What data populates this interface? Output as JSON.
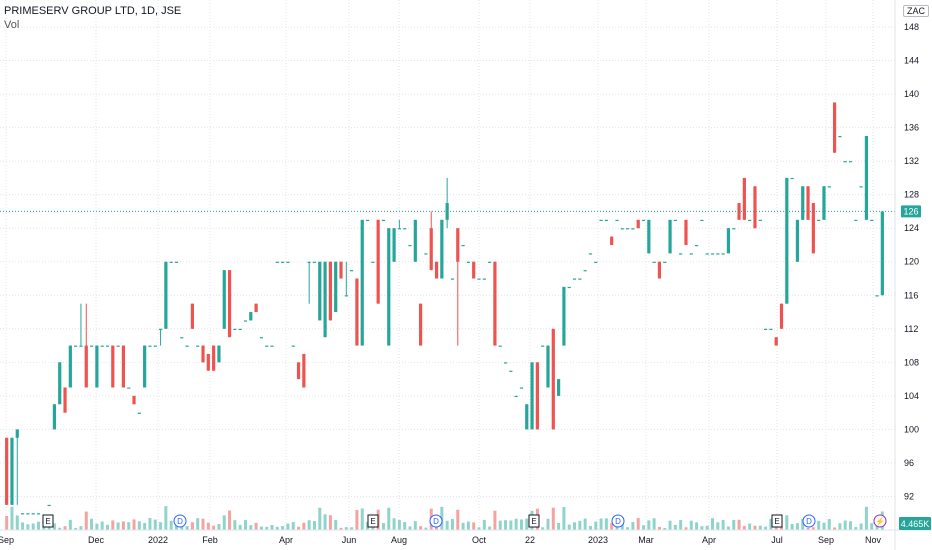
{
  "header": {
    "title": "PRIMESERV GROUP LTD, 1D, JSE",
    "vol_label": "Vol",
    "currency": "ZAC"
  },
  "price_badge": "126",
  "volume_badge": "4.465K",
  "colors": {
    "up": "#26a69a",
    "down": "#ef5350",
    "vol_up": "#8fd4cb",
    "vol_down": "#f4a3a1",
    "grid": "#e0e3eb",
    "axis_text": "#131722",
    "event_dividend": "#2962ff",
    "event_earnings": "#131722",
    "event_split": "#9c27b0"
  },
  "events": [
    {
      "label": "E",
      "type": "earnings",
      "x_pos": "Nov"
    },
    {
      "label": "D",
      "type": "dividend",
      "x_pos": "Jan 2022"
    },
    {
      "label": "E",
      "type": "earnings",
      "x_pos": "Jun 2022"
    },
    {
      "label": "D",
      "type": "dividend",
      "x_pos": "Aug 2022"
    },
    {
      "label": "E",
      "type": "earnings",
      "x_pos": "Nov 2022"
    },
    {
      "label": "D",
      "type": "dividend",
      "x_pos": "Feb 2023"
    },
    {
      "label": "E",
      "type": "earnings",
      "x_pos": "Jul 2023"
    },
    {
      "label": "D",
      "type": "dividend",
      "x_pos": "Aug 2023"
    },
    {
      "label": "⚡",
      "type": "split",
      "x_pos": "Nov 2023"
    }
  ],
  "chart_data": {
    "type": "candlestick",
    "title": "PRIMESERV GROUP LTD, 1D, JSE",
    "y_axis": {
      "range": [
        88,
        150
      ],
      "ticks": [
        92,
        96,
        100,
        104,
        108,
        112,
        116,
        120,
        124,
        128,
        132,
        136,
        140,
        144,
        148
      ],
      "position": "right"
    },
    "x_axis": {
      "ticks": [
        "Sep",
        "Dec",
        "2022",
        "Feb",
        "Apr",
        "Jun",
        "Aug",
        "Oct",
        "22",
        "2023",
        "Mar",
        "Apr",
        "Jul",
        "Sep",
        "Nov"
      ]
    },
    "last_price": 126,
    "grid": true,
    "candles": [
      {
        "o": 99,
        "h": 99,
        "l": 91,
        "c": 91
      },
      {
        "o": 91,
        "h": 99,
        "l": 91,
        "c": 99
      },
      {
        "o": 99,
        "h": 100,
        "l": 91,
        "c": 100
      },
      {
        "o": 90,
        "h": 90,
        "l": 90,
        "c": 90
      },
      {
        "o": 90,
        "h": 90,
        "l": 90,
        "c": 90
      },
      {
        "o": 90,
        "h": 90,
        "l": 90,
        "c": 90
      },
      {
        "o": 90,
        "h": 90,
        "l": 90,
        "c": 90
      },
      {
        "o": 89,
        "h": 89,
        "l": 89,
        "c": 89
      },
      {
        "o": 91,
        "h": 91,
        "l": 91,
        "c": 91
      },
      {
        "o": 100,
        "h": 103,
        "l": 100,
        "c": 103
      },
      {
        "o": 103,
        "h": 108,
        "l": 103,
        "c": 108
      },
      {
        "o": 105,
        "h": 105,
        "l": 102,
        "c": 102
      },
      {
        "o": 105,
        "h": 110,
        "l": 105,
        "c": 110
      },
      {
        "o": 110,
        "h": 110,
        "l": 110,
        "c": 110
      },
      {
        "o": 110,
        "h": 115,
        "l": 110,
        "c": 110
      },
      {
        "o": 110,
        "h": 115,
        "l": 105,
        "c": 105
      },
      {
        "o": 110,
        "h": 110,
        "l": 110,
        "c": 110
      },
      {
        "o": 105,
        "h": 110,
        "l": 105,
        "c": 110
      },
      {
        "o": 110,
        "h": 110,
        "l": 110,
        "c": 110
      },
      {
        "o": 110,
        "h": 110,
        "l": 110,
        "c": 110
      },
      {
        "o": 110,
        "h": 110,
        "l": 105,
        "c": 105
      },
      {
        "o": 110,
        "h": 110,
        "l": 110,
        "c": 110
      },
      {
        "o": 110,
        "h": 110,
        "l": 105,
        "c": 105
      },
      {
        "o": 105,
        "h": 105,
        "l": 105,
        "c": 105
      },
      {
        "o": 104,
        "h": 104,
        "l": 103,
        "c": 103
      },
      {
        "o": 102,
        "h": 102,
        "l": 102,
        "c": 102
      },
      {
        "o": 105,
        "h": 110,
        "l": 105,
        "c": 110
      },
      {
        "o": 110,
        "h": 110,
        "l": 110,
        "c": 110
      },
      {
        "o": 110,
        "h": 110,
        "l": 110,
        "c": 110
      },
      {
        "o": 112,
        "h": 112,
        "l": 110,
        "c": 112
      },
      {
        "o": 112,
        "h": 120,
        "l": 112,
        "c": 120
      },
      {
        "o": 120,
        "h": 120,
        "l": 120,
        "c": 120
      },
      {
        "o": 120,
        "h": 120,
        "l": 120,
        "c": 120
      },
      {
        "o": 111,
        "h": 111,
        "l": 111,
        "c": 111
      },
      {
        "o": 110,
        "h": 110,
        "l": 110,
        "c": 110
      },
      {
        "o": 115,
        "h": 115,
        "l": 112,
        "c": 112
      },
      {
        "o": 110,
        "h": 110,
        "l": 110,
        "c": 110
      },
      {
        "o": 110,
        "h": 110,
        "l": 108,
        "c": 108
      },
      {
        "o": 109,
        "h": 109,
        "l": 107,
        "c": 107
      },
      {
        "o": 110,
        "h": 110,
        "l": 107,
        "c": 107
      },
      {
        "o": 108,
        "h": 110,
        "l": 108,
        "c": 110
      },
      {
        "o": 112,
        "h": 119,
        "l": 112,
        "c": 119
      },
      {
        "o": 119,
        "h": 119,
        "l": 111,
        "c": 111
      },
      {
        "o": 112,
        "h": 112,
        "l": 112,
        "c": 112
      },
      {
        "o": 112,
        "h": 112,
        "l": 112,
        "c": 112
      },
      {
        "o": 113,
        "h": 113,
        "l": 113,
        "c": 113
      },
      {
        "o": 113,
        "h": 114,
        "l": 113,
        "c": 114
      },
      {
        "o": 115,
        "h": 115,
        "l": 114,
        "c": 114
      },
      {
        "o": 111,
        "h": 111,
        "l": 111,
        "c": 111
      },
      {
        "o": 110,
        "h": 110,
        "l": 110,
        "c": 110
      },
      {
        "o": 110,
        "h": 110,
        "l": 110,
        "c": 110
      },
      {
        "o": 120,
        "h": 120,
        "l": 120,
        "c": 120
      },
      {
        "o": 120,
        "h": 120,
        "l": 120,
        "c": 120
      },
      {
        "o": 120,
        "h": 120,
        "l": 120,
        "c": 120
      },
      {
        "o": 110,
        "h": 110,
        "l": 110,
        "c": 110
      },
      {
        "o": 108,
        "h": 108,
        "l": 106,
        "c": 106
      },
      {
        "o": 109,
        "h": 109,
        "l": 105,
        "c": 105
      },
      {
        "o": 120,
        "h": 120,
        "l": 115,
        "c": 120
      },
      {
        "o": 120,
        "h": 120,
        "l": 120,
        "c": 120
      },
      {
        "o": 113,
        "h": 120,
        "l": 113,
        "c": 120
      },
      {
        "o": 111,
        "h": 120,
        "l": 111,
        "c": 120
      },
      {
        "o": 120,
        "h": 120,
        "l": 113,
        "c": 113
      },
      {
        "o": 114,
        "h": 120,
        "l": 114,
        "c": 120
      },
      {
        "o": 120,
        "h": 120,
        "l": 118,
        "c": 118
      },
      {
        "o": 116,
        "h": 120,
        "l": 116,
        "c": 116
      },
      {
        "o": 119,
        "h": 119,
        "l": 119,
        "c": 119
      },
      {
        "o": 118,
        "h": 118,
        "l": 110,
        "c": 110
      },
      {
        "o": 110,
        "h": 125,
        "l": 110,
        "c": 125
      },
      {
        "o": 125,
        "h": 125,
        "l": 125,
        "c": 125
      },
      {
        "o": 120,
        "h": 120,
        "l": 120,
        "c": 120
      },
      {
        "o": 125,
        "h": 125,
        "l": 115,
        "c": 115
      },
      {
        "o": 125,
        "h": 125,
        "l": 125,
        "c": 125
      },
      {
        "o": 110,
        "h": 124,
        "l": 110,
        "c": 124
      },
      {
        "o": 120,
        "h": 124,
        "l": 120,
        "c": 124
      },
      {
        "o": 124,
        "h": 125,
        "l": 124,
        "c": 124
      },
      {
        "o": 124,
        "h": 124,
        "l": 124,
        "c": 124
      },
      {
        "o": 122,
        "h": 122,
        "l": 122,
        "c": 122
      },
      {
        "o": 120,
        "h": 125,
        "l": 120,
        "c": 125
      },
      {
        "o": 115,
        "h": 115,
        "l": 110,
        "c": 110
      },
      {
        "o": 121,
        "h": 121,
        "l": 121,
        "c": 121
      },
      {
        "o": 124,
        "h": 126,
        "l": 119,
        "c": 119
      },
      {
        "o": 120,
        "h": 120,
        "l": 118,
        "c": 118
      },
      {
        "o": 118,
        "h": 125,
        "l": 118,
        "c": 125
      },
      {
        "o": 125,
        "h": 130,
        "l": 124,
        "c": 127
      },
      {
        "o": 118,
        "h": 118,
        "l": 118,
        "c": 118
      },
      {
        "o": 124,
        "h": 124,
        "l": 110,
        "c": 120
      },
      {
        "o": 122,
        "h": 122,
        "l": 122,
        "c": 122
      },
      {
        "o": 120,
        "h": 120,
        "l": 120,
        "c": 120
      },
      {
        "o": 120,
        "h": 120,
        "l": 118,
        "c": 118
      },
      {
        "o": 118,
        "h": 118,
        "l": 118,
        "c": 118
      },
      {
        "o": 118,
        "h": 118,
        "l": 118,
        "c": 118
      },
      {
        "o": 120,
        "h": 120,
        "l": 120,
        "c": 120
      },
      {
        "o": 120,
        "h": 120,
        "l": 110,
        "c": 110
      },
      {
        "o": 110,
        "h": 110,
        "l": 110,
        "c": 110
      },
      {
        "o": 108,
        "h": 108,
        "l": 108,
        "c": 108
      },
      {
        "o": 107,
        "h": 107,
        "l": 107,
        "c": 107
      },
      {
        "o": 104,
        "h": 104,
        "l": 104,
        "c": 104
      },
      {
        "o": 105,
        "h": 105,
        "l": 105,
        "c": 105
      },
      {
        "o": 100,
        "h": 103,
        "l": 100,
        "c": 103
      },
      {
        "o": 100,
        "h": 108,
        "l": 100,
        "c": 108
      },
      {
        "o": 108,
        "h": 108,
        "l": 100,
        "c": 100
      },
      {
        "o": 110,
        "h": 110,
        "l": 110,
        "c": 110
      },
      {
        "o": 105,
        "h": 110,
        "l": 105,
        "c": 110
      },
      {
        "o": 112,
        "h": 112,
        "l": 100,
        "c": 100
      },
      {
        "o": 104,
        "h": 106,
        "l": 104,
        "c": 106
      },
      {
        "o": 110,
        "h": 117,
        "l": 110,
        "c": 117
      },
      {
        "o": 117,
        "h": 117,
        "l": 117,
        "c": 117
      },
      {
        "o": 118,
        "h": 118,
        "l": 118,
        "c": 118
      },
      {
        "o": 118,
        "h": 118,
        "l": 118,
        "c": 118
      },
      {
        "o": 119,
        "h": 119,
        "l": 119,
        "c": 119
      },
      {
        "o": 121,
        "h": 121,
        "l": 121,
        "c": 121
      },
      {
        "o": 120,
        "h": 120,
        "l": 120,
        "c": 120
      },
      {
        "o": 125,
        "h": 125,
        "l": 125,
        "c": 125
      },
      {
        "o": 125,
        "h": 125,
        "l": 125,
        "c": 125
      },
      {
        "o": 123,
        "h": 123,
        "l": 122,
        "c": 122
      },
      {
        "o": 125,
        "h": 125,
        "l": 125,
        "c": 125
      },
      {
        "o": 124,
        "h": 124,
        "l": 124,
        "c": 124
      },
      {
        "o": 124,
        "h": 124,
        "l": 124,
        "c": 124
      },
      {
        "o": 124,
        "h": 124,
        "l": 124,
        "c": 124
      },
      {
        "o": 125,
        "h": 125,
        "l": 124,
        "c": 124
      },
      {
        "o": 125,
        "h": 125,
        "l": 125,
        "c": 125
      },
      {
        "o": 121,
        "h": 125,
        "l": 121,
        "c": 125
      },
      {
        "o": 120,
        "h": 120,
        "l": 120,
        "c": 120
      },
      {
        "o": 120,
        "h": 120,
        "l": 118,
        "c": 118
      },
      {
        "o": 120,
        "h": 120,
        "l": 120,
        "c": 120
      },
      {
        "o": 121,
        "h": 125,
        "l": 121,
        "c": 125
      },
      {
        "o": 125,
        "h": 125,
        "l": 125,
        "c": 125
      },
      {
        "o": 121,
        "h": 121,
        "l": 121,
        "c": 121
      },
      {
        "o": 125,
        "h": 125,
        "l": 122,
        "c": 122
      },
      {
        "o": 121,
        "h": 121,
        "l": 121,
        "c": 121
      },
      {
        "o": 122,
        "h": 122,
        "l": 122,
        "c": 122
      },
      {
        "o": 125,
        "h": 125,
        "l": 125,
        "c": 125
      },
      {
        "o": 121,
        "h": 121,
        "l": 121,
        "c": 121
      },
      {
        "o": 121,
        "h": 121,
        "l": 121,
        "c": 121
      },
      {
        "o": 121,
        "h": 121,
        "l": 121,
        "c": 121
      },
      {
        "o": 121,
        "h": 121,
        "l": 121,
        "c": 121
      },
      {
        "o": 121,
        "h": 124,
        "l": 121,
        "c": 124
      },
      {
        "o": 124,
        "h": 124,
        "l": 124,
        "c": 124
      },
      {
        "o": 127,
        "h": 127,
        "l": 125,
        "c": 125
      },
      {
        "o": 130,
        "h": 130,
        "l": 125,
        "c": 125
      },
      {
        "o": 125,
        "h": 125,
        "l": 125,
        "c": 125
      },
      {
        "o": 129,
        "h": 129,
        "l": 124,
        "c": 124
      },
      {
        "o": 125,
        "h": 125,
        "l": 125,
        "c": 125
      },
      {
        "o": 112,
        "h": 112,
        "l": 112,
        "c": 112
      },
      {
        "o": 112,
        "h": 112,
        "l": 112,
        "c": 112
      },
      {
        "o": 111,
        "h": 111,
        "l": 110,
        "c": 110
      },
      {
        "o": 115,
        "h": 115,
        "l": 112,
        "c": 112
      },
      {
        "o": 115,
        "h": 130,
        "l": 115,
        "c": 130
      },
      {
        "o": 130,
        "h": 130,
        "l": 130,
        "c": 130
      },
      {
        "o": 120,
        "h": 125,
        "l": 120,
        "c": 125
      },
      {
        "o": 125,
        "h": 129,
        "l": 125,
        "c": 129
      },
      {
        "o": 129,
        "h": 129,
        "l": 125,
        "c": 125
      },
      {
        "o": 127,
        "h": 127,
        "l": 121,
        "c": 121
      },
      {
        "o": 125,
        "h": 125,
        "l": 125,
        "c": 125
      },
      {
        "o": 125,
        "h": 129,
        "l": 125,
        "c": 129
      },
      {
        "o": 129,
        "h": 129,
        "l": 129,
        "c": 129
      },
      {
        "o": 139,
        "h": 139,
        "l": 133,
        "c": 133
      },
      {
        "o": 135,
        "h": 135,
        "l": 135,
        "c": 135
      },
      {
        "o": 132,
        "h": 132,
        "l": 132,
        "c": 132
      },
      {
        "o": 132,
        "h": 132,
        "l": 132,
        "c": 132
      },
      {
        "o": 125,
        "h": 125,
        "l": 125,
        "c": 125
      },
      {
        "o": 129,
        "h": 129,
        "l": 129,
        "c": 129
      },
      {
        "o": 125,
        "h": 135,
        "l": 125,
        "c": 135
      },
      {
        "o": 125,
        "h": 125,
        "l": 125,
        "c": 125
      },
      {
        "o": 116,
        "h": 116,
        "l": 116,
        "c": 116
      },
      {
        "o": 116,
        "h": 126,
        "l": 116,
        "c": 126
      }
    ]
  }
}
